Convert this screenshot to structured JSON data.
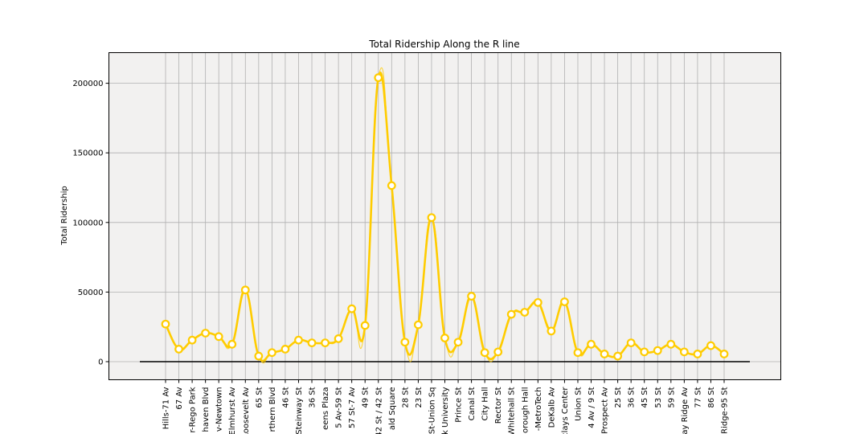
{
  "chart_data": {
    "type": "line",
    "title": "Total Ridership Along the R line",
    "xlabel": "",
    "ylabel": "Total Ridership",
    "ylim": [
      -13000,
      222000
    ],
    "yticks": [
      0,
      50000,
      100000,
      150000,
      200000
    ],
    "grid": true,
    "colors": {
      "line": "#ffcc00",
      "marker_fill": "#ffffff",
      "background": "#f2f1f0",
      "grid": "#b0b0b0",
      "baseline": "#000000"
    },
    "categories": [
      "Hills-71 Av",
      "67 Av",
      "r-Rego Park",
      "haven Blvd",
      "v-Newtown",
      "Elmhurst Av",
      "Roosevelt Av",
      "65 St",
      "rthern Blvd",
      "46 St",
      "Steinway St",
      "36 St",
      "eens Plaza",
      "5 Av-59 St",
      "57 St-7 Av",
      "49 St",
      "42 St / 42 St",
      "ald Square",
      "28 St",
      "23 St",
      "St-Union Sq",
      "k University",
      "Prince St",
      "Canal St",
      "City Hall",
      "Rector St",
      "Whitehall St",
      "orough Hall",
      "-MetroTech",
      "DeKalb Av",
      "clays Center",
      "Union St",
      "4 Av / 9 St",
      "Prospect Av",
      "25 St",
      "36 St",
      "45 St",
      "53 St",
      "59 St",
      "ay Ridge Av",
      "77 St",
      "86 St",
      "Ridge-95 St"
    ],
    "values": [
      27000,
      9000,
      15500,
      20500,
      18000,
      12500,
      51500,
      4000,
      6500,
      9000,
      15500,
      13500,
      13500,
      16500,
      38000,
      26000,
      204000,
      126500,
      14000,
      26500,
      103500,
      17000,
      14000,
      47000,
      6500,
      7000,
      34000,
      35500,
      42500,
      22000,
      43000,
      6500,
      12500,
      5500,
      4000,
      13500,
      7000,
      8000,
      12500,
      7000,
      5500,
      11500,
      5500
    ],
    "baseline": 0
  }
}
